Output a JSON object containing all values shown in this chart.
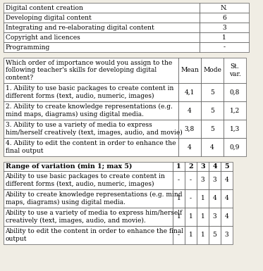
{
  "table1": {
    "col1": [
      "Digital content creation",
      "Developing digital content",
      "Integrating and re-elaborating digital content",
      "Copyright and licences",
      "Programming"
    ],
    "col2": [
      "N.",
      "6",
      "3",
      "1",
      "-"
    ]
  },
  "table2": {
    "header_text": "Which order of importance would you assign to the\nfollowing teacher's skills for developing digital\ncontent?",
    "rows": [
      [
        "1. Ability to use basic packages to create content in\ndifferent forms (text, audio, numeric, images)",
        "4,1",
        "5",
        "0,8"
      ],
      [
        "2. Ability to create knowledge representations (e.g.\nmind maps, diagrams) using digital media.",
        "4",
        "5",
        "1,2"
      ],
      [
        "3. Ability to use a variety of media to express\nhim/herself creatively (text, images, audio, and movie)",
        "3,8",
        "5",
        "1,3"
      ],
      [
        "4. Ability to edit the content in order to enhance the\nfinal output",
        "4",
        "4",
        "0,9"
      ]
    ]
  },
  "table3": {
    "rows": [
      [
        "Ability to use basic packages to create content in\ndifferent forms (text, audio, numeric, images)",
        "-",
        "-",
        "3",
        "3",
        "4"
      ],
      [
        "Ability to create knowledge representations (e.g. mind\nmaps, diagrams) using digital media.",
        "1",
        "-",
        "1",
        "4",
        "4"
      ],
      [
        "Ability to use a variety of media to express him/herself\ncreatively (text, images, audio, and movie).",
        "1",
        "1",
        "1",
        "3",
        "4"
      ],
      [
        "Ability to edit the content in order to enhance the final\noutput",
        "-",
        "1",
        "1",
        "5",
        "3"
      ]
    ]
  },
  "bg_color": "#f0ede4",
  "cell_color": "#ffffff",
  "line_color": "#555555",
  "font_size": 6.5,
  "header_font_size": 6.8
}
